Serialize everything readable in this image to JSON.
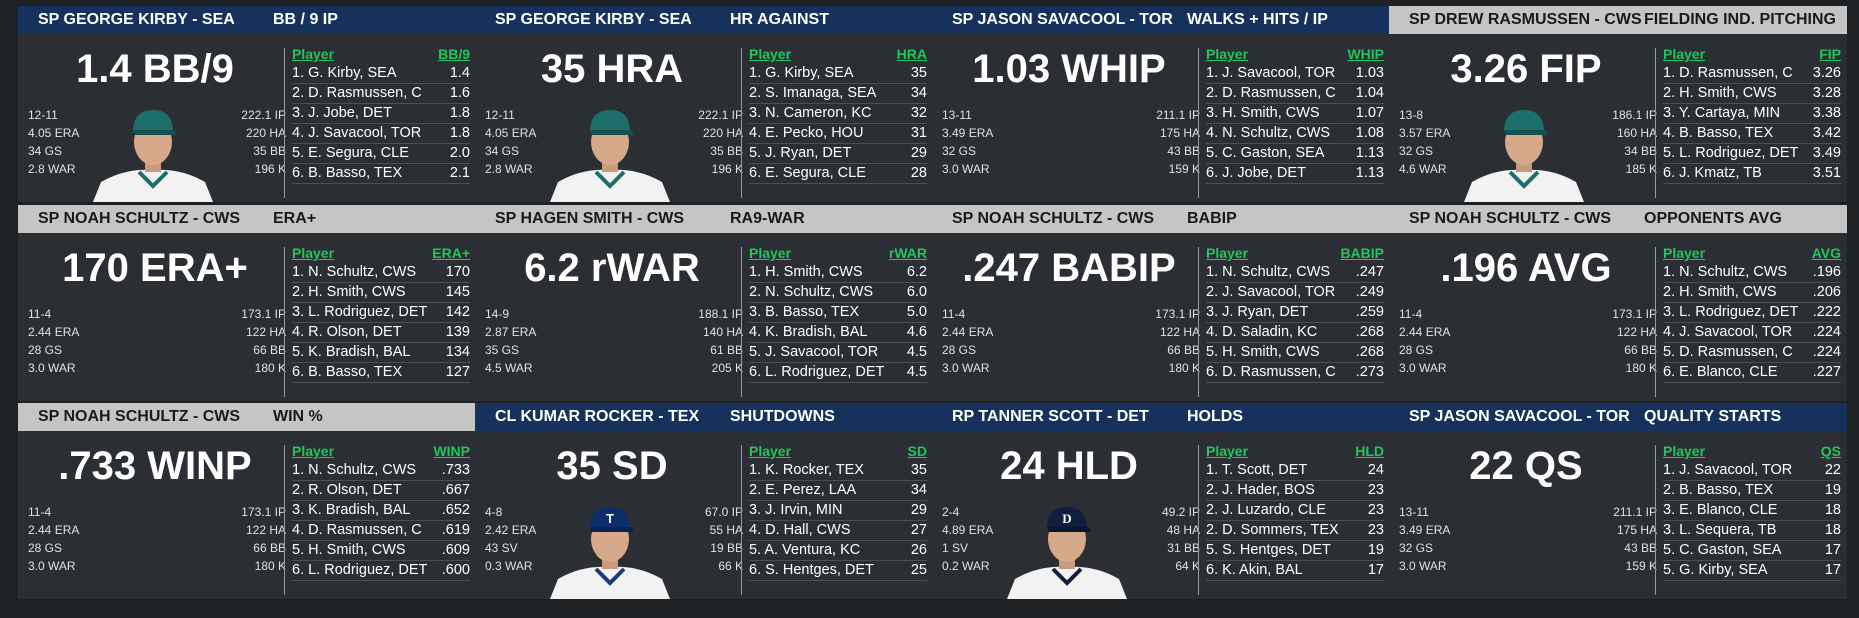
{
  "cards": [
    {
      "header_style": "blue",
      "player": "SP GEORGE KIRBY - SEA",
      "stat_title": "BB / 9 IP",
      "big_value": "1.4 BB/9",
      "stats": [
        [
          "12-11",
          "222.1 IP"
        ],
        [
          "4.05 ERA",
          "220 HA"
        ],
        [
          "34 GS",
          "35 BB"
        ],
        [
          "2.8 WAR",
          "196 K"
        ]
      ],
      "avatar": "mariners-player-photo",
      "leader_header": [
        "Player",
        "BB/9"
      ],
      "leaders": [
        [
          "1. G. Kirby, SEA",
          "1.4"
        ],
        [
          "2. D. Rasmussen, C",
          "1.6"
        ],
        [
          "3. J. Jobe, DET",
          "1.8"
        ],
        [
          "4. J. Savacool, TOR",
          "1.8"
        ],
        [
          "5. E. Segura, CLE",
          "2.0"
        ],
        [
          "6. B. Basso, TEX",
          "2.1"
        ]
      ]
    },
    {
      "header_style": "blue",
      "player": "SP GEORGE KIRBY - SEA",
      "stat_title": "HR AGAINST",
      "big_value": "35 HRA",
      "stats": [
        [
          "12-11",
          "222.1 IP"
        ],
        [
          "4.05 ERA",
          "220 HA"
        ],
        [
          "34 GS",
          "35 BB"
        ],
        [
          "2.8 WAR",
          "196 K"
        ]
      ],
      "avatar": "mariners-player-photo",
      "leader_header": [
        "Player",
        "HRA"
      ],
      "leaders": [
        [
          "1. G. Kirby, SEA",
          "35"
        ],
        [
          "2. S. Imanaga, SEA",
          "34"
        ],
        [
          "3. N. Cameron, KC",
          "32"
        ],
        [
          "4. E. Pecko, HOU",
          "31"
        ],
        [
          "5. J. Ryan, DET",
          "29"
        ],
        [
          "6. E. Segura, CLE",
          "28"
        ]
      ]
    },
    {
      "header_style": "blue",
      "player": "SP JASON SAVACOOL - TOR",
      "stat_title": "WALKS + HITS / IP",
      "big_value": "1.03 WHIP",
      "stats": [
        [
          "13-11",
          "211.1 IP"
        ],
        [
          "3.49 ERA",
          "175 HA"
        ],
        [
          "32 GS",
          "43 BB"
        ],
        [
          "3.0 WAR",
          "159 K"
        ]
      ],
      "avatar": "",
      "leader_header": [
        "Player",
        "WHIP"
      ],
      "leaders": [
        [
          "1. J. Savacool, TOR",
          "1.03"
        ],
        [
          "2. D. Rasmussen, C",
          "1.04"
        ],
        [
          "3. H. Smith, CWS",
          "1.07"
        ],
        [
          "4. N. Schultz, CWS",
          "1.08"
        ],
        [
          "5. C. Gaston, SEA",
          "1.13"
        ],
        [
          "6. J. Jobe, DET",
          "1.13"
        ]
      ]
    },
    {
      "header_style": "gray",
      "player": "SP DREW RASMUSSEN - CWS",
      "stat_title": "FIELDING IND. PITCHING",
      "big_value": "3.26 FIP",
      "stats": [
        [
          "13-8",
          "186.1 IP"
        ],
        [
          "3.57 ERA",
          "160 HA"
        ],
        [
          "32 GS",
          "34 BB"
        ],
        [
          "4.6 WAR",
          "185 K"
        ]
      ],
      "avatar": "mariners-player-photo",
      "leader_header": [
        "Player",
        "FIP"
      ],
      "leaders": [
        [
          "1. D. Rasmussen, C",
          "3.26"
        ],
        [
          "2. H. Smith, CWS",
          "3.28"
        ],
        [
          "3. Y. Cartaya, MIN",
          "3.38"
        ],
        [
          "4. B. Basso, TEX",
          "3.42"
        ],
        [
          "5. L. Rodriguez, DET",
          "3.49"
        ],
        [
          "6. J. Kmatz, TB",
          "3.51"
        ]
      ]
    },
    {
      "header_style": "gray",
      "player": "SP NOAH SCHULTZ - CWS",
      "stat_title": "ERA+",
      "big_value": "170 ERA+",
      "stats": [
        [
          "11-4",
          "173.1 IP"
        ],
        [
          "2.44 ERA",
          "122 HA"
        ],
        [
          "28 GS",
          "66 BB"
        ],
        [
          "3.0 WAR",
          "180 K"
        ]
      ],
      "avatar": "",
      "leader_header": [
        "Player",
        "ERA+"
      ],
      "leaders": [
        [
          "1. N. Schultz, CWS",
          "170"
        ],
        [
          "2. H. Smith, CWS",
          "145"
        ],
        [
          "3. L. Rodriguez, DET",
          "142"
        ],
        [
          "4. R. Olson, DET",
          "139"
        ],
        [
          "5. K. Bradish, BAL",
          "134"
        ],
        [
          "6. B. Basso, TEX",
          "127"
        ]
      ]
    },
    {
      "header_style": "gray",
      "player": "SP HAGEN SMITH - CWS",
      "stat_title": "RA9-WAR",
      "big_value": "6.2 rWAR",
      "stats": [
        [
          "14-9",
          "188.1 IP"
        ],
        [
          "2.87 ERA",
          "140 HA"
        ],
        [
          "35 GS",
          "61 BB"
        ],
        [
          "4.5 WAR",
          "205 K"
        ]
      ],
      "avatar": "",
      "leader_header": [
        "Player",
        "rWAR"
      ],
      "leaders": [
        [
          "1. H. Smith, CWS",
          "6.2"
        ],
        [
          "2. N. Schultz, CWS",
          "6.0"
        ],
        [
          "3. B. Basso, TEX",
          "5.0"
        ],
        [
          "4. K. Bradish, BAL",
          "4.6"
        ],
        [
          "5. J. Savacool, TOR",
          "4.5"
        ],
        [
          "6. L. Rodriguez, DET",
          "4.5"
        ]
      ]
    },
    {
      "header_style": "gray",
      "player": "SP NOAH SCHULTZ - CWS",
      "stat_title": "BABIP",
      "big_value": ".247 BABIP",
      "stats": [
        [
          "11-4",
          "173.1 IP"
        ],
        [
          "2.44 ERA",
          "122 HA"
        ],
        [
          "28 GS",
          "66 BB"
        ],
        [
          "3.0 WAR",
          "180 K"
        ]
      ],
      "avatar": "",
      "leader_header": [
        "Player",
        "BABIP"
      ],
      "leaders": [
        [
          "1. N. Schultz, CWS",
          ".247"
        ],
        [
          "2. J. Savacool, TOR",
          ".249"
        ],
        [
          "3. J. Ryan, DET",
          ".259"
        ],
        [
          "4. D. Saladin, KC",
          ".268"
        ],
        [
          "5. H. Smith, CWS",
          ".268"
        ],
        [
          "6. D. Rasmussen, C",
          ".273"
        ]
      ]
    },
    {
      "header_style": "gray",
      "player": "SP NOAH SCHULTZ - CWS",
      "stat_title": "OPPONENTS AVG",
      "big_value": ".196 AVG",
      "stats": [
        [
          "11-4",
          "173.1 IP"
        ],
        [
          "2.44 ERA",
          "122 HA"
        ],
        [
          "28 GS",
          "66 BB"
        ],
        [
          "3.0 WAR",
          "180 K"
        ]
      ],
      "avatar": "",
      "leader_header": [
        "Player",
        "AVG"
      ],
      "leaders": [
        [
          "1. N. Schultz, CWS",
          ".196"
        ],
        [
          "2. H. Smith, CWS",
          ".206"
        ],
        [
          "3. L. Rodriguez, DET",
          ".222"
        ],
        [
          "4. J. Savacool, TOR",
          ".224"
        ],
        [
          "5. D. Rasmussen, C",
          ".224"
        ],
        [
          "6. E. Blanco, CLE",
          ".227"
        ]
      ]
    },
    {
      "header_style": "gray",
      "player": "SP NOAH SCHULTZ - CWS",
      "stat_title": "WIN %",
      "big_value": ".733 WINP",
      "stats": [
        [
          "11-4",
          "173.1 IP"
        ],
        [
          "2.44 ERA",
          "122 HA"
        ],
        [
          "28 GS",
          "66 BB"
        ],
        [
          "3.0 WAR",
          "180 K"
        ]
      ],
      "avatar": "",
      "leader_header": [
        "Player",
        "WINP"
      ],
      "leaders": [
        [
          "1. N. Schultz, CWS",
          ".733"
        ],
        [
          "2. R. Olson, DET",
          ".667"
        ],
        [
          "3. K. Bradish, BAL",
          ".652"
        ],
        [
          "4. D. Rasmussen, C",
          ".619"
        ],
        [
          "5. H. Smith, CWS",
          ".609"
        ],
        [
          "6. L. Rodriguez, DET",
          ".600"
        ]
      ]
    },
    {
      "header_style": "blue",
      "player": "CL KUMAR ROCKER - TEX",
      "stat_title": "SHUTDOWNS",
      "big_value": "35 SD",
      "stats": [
        [
          "4-8",
          "67.0 IP"
        ],
        [
          "2.42 ERA",
          "55 HA"
        ],
        [
          "43 SV",
          "19 BB"
        ],
        [
          "0.3 WAR",
          "66 K"
        ]
      ],
      "avatar": "rangers-player-photo",
      "leader_header": [
        "Player",
        "SD"
      ],
      "leaders": [
        [
          "1. K. Rocker, TEX",
          "35"
        ],
        [
          "2. E. Perez, LAA",
          "34"
        ],
        [
          "3. J. Irvin, MIN",
          "29"
        ],
        [
          "4. D. Hall, CWS",
          "27"
        ],
        [
          "5. A. Ventura, KC",
          "26"
        ],
        [
          "6. S. Hentges, DET",
          "25"
        ]
      ]
    },
    {
      "header_style": "blue",
      "player": "RP TANNER SCOTT - DET",
      "stat_title": "HOLDS",
      "big_value": "24 HLD",
      "stats": [
        [
          "2-4",
          "49.2 IP"
        ],
        [
          "4.89 ERA",
          "48 HA"
        ],
        [
          "1 SV",
          "31 BB"
        ],
        [
          "0.2 WAR",
          "64 K"
        ]
      ],
      "avatar": "tigers-player-photo",
      "leader_header": [
        "Player",
        "HLD"
      ],
      "leaders": [
        [
          "1. T. Scott, DET",
          "24"
        ],
        [
          "2. J. Hader, BOS",
          "23"
        ],
        [
          "2. J. Luzardo, CLE",
          "23"
        ],
        [
          "2. D. Sommers, TEX",
          "23"
        ],
        [
          "5. S. Hentges, DET",
          "19"
        ],
        [
          "6. K. Akin, BAL",
          "17"
        ]
      ]
    },
    {
      "header_style": "blue",
      "player": "SP JASON SAVACOOL - TOR",
      "stat_title": "QUALITY STARTS",
      "big_value": "22 QS",
      "stats": [
        [
          "13-11",
          "211.1 IP"
        ],
        [
          "3.49 ERA",
          "175 HA"
        ],
        [
          "32 GS",
          "43 BB"
        ],
        [
          "3.0 WAR",
          "159 K"
        ]
      ],
      "avatar": "",
      "leader_header": [
        "Player",
        "QS"
      ],
      "leaders": [
        [
          "1. J. Savacool, TOR",
          "22"
        ],
        [
          "2. B. Basso, TEX",
          "19"
        ],
        [
          "3. E. Blanco, CLE",
          "18"
        ],
        [
          "3. L. Sequera, TB",
          "18"
        ],
        [
          "5. C. Gaston, SEA",
          "17"
        ],
        [
          "5. G. Kirby, SEA",
          "17"
        ]
      ]
    }
  ]
}
